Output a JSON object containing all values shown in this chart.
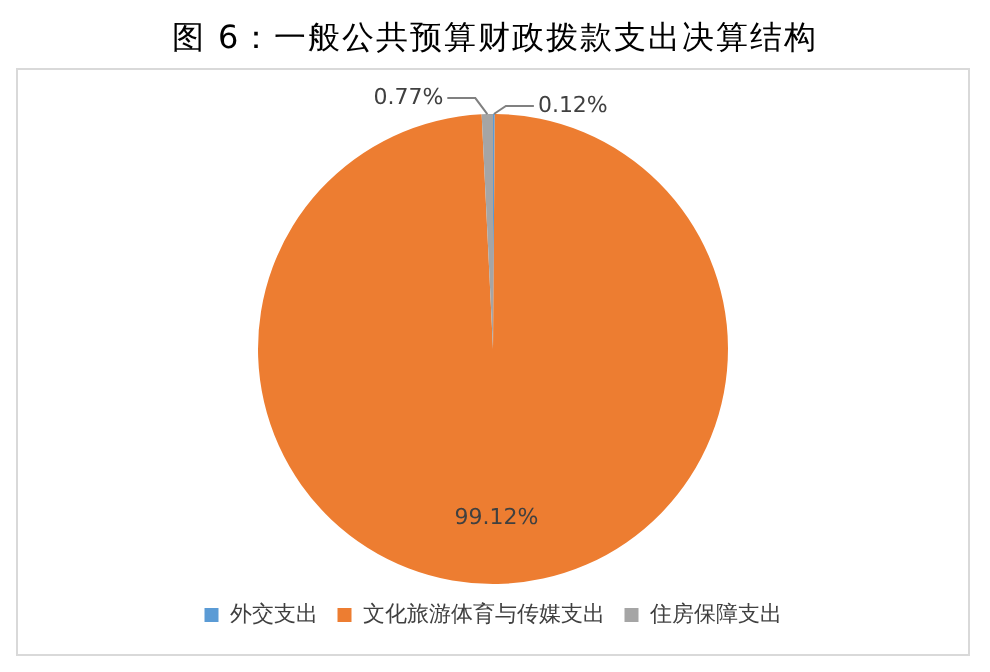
{
  "chart_data": {
    "type": "pie",
    "title": "图 6：一般公共预算财政拨款支出决算结构",
    "categories": [
      "外交支出",
      "文化旅游体育与传媒支出",
      "住房保障支出"
    ],
    "values": [
      0.12,
      99.12,
      0.77
    ],
    "colors": [
      "#5b9bd5",
      "#ed7d31",
      "#a5a5a5"
    ],
    "value_labels": [
      "0.12%",
      "99.12%",
      "0.77%"
    ],
    "legend": "bottom"
  }
}
